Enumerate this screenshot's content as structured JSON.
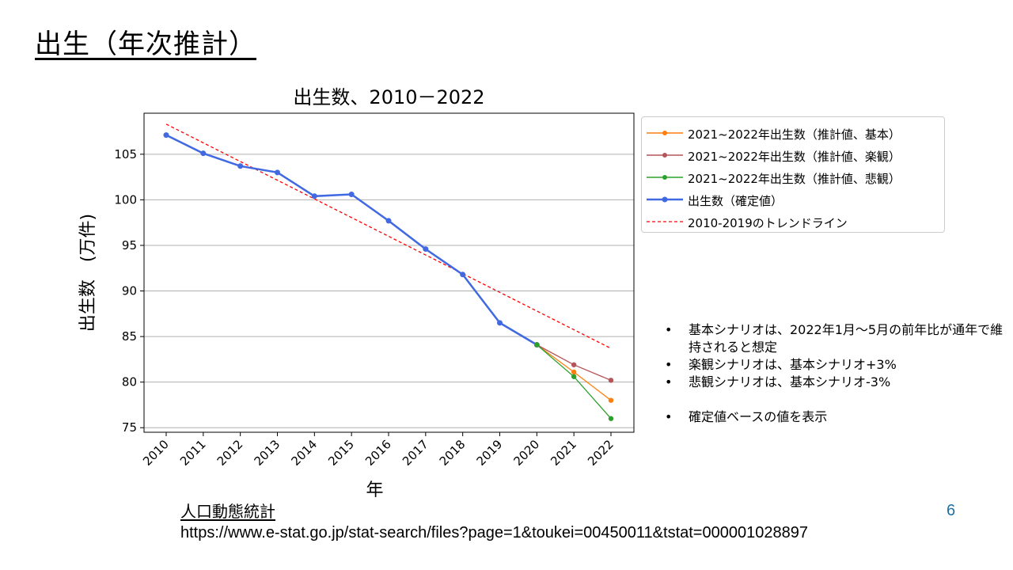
{
  "slide": {
    "title": "出生（年次推計）",
    "page_number": "6"
  },
  "notes": [
    "基本シナリオは、2022年1月～5月の前年比が通年で維持されると想定",
    "楽観シナリオは、基本シナリオ+3%",
    "悲観シナリオは、基本シナリオ-3%",
    "確定値ベースの値を表示"
  ],
  "source": {
    "title": "人口動態統計",
    "url": "https://www.e-stat.go.jp/stat-search/files?page=1&toukei=00450011&tstat=000001028897"
  },
  "chart_data": {
    "type": "line",
    "title": "出生数、2010－2022",
    "xlabel": "年",
    "ylabel": "出生数　(万件)",
    "x": [
      "2010",
      "2011",
      "2012",
      "2013",
      "2014",
      "2015",
      "2016",
      "2017",
      "2018",
      "2019",
      "2020",
      "2021",
      "2022"
    ],
    "ylim": [
      74.5,
      109.5
    ],
    "yticks": [
      75,
      80,
      85,
      90,
      95,
      100,
      105
    ],
    "grid": "y",
    "legend_position": "outside-right-top",
    "series": [
      {
        "name": "2021~2022年出生数（推計値、基本）",
        "color": "#ff7f0e",
        "style": "solid-marker",
        "x": [
          "2020",
          "2021",
          "2022"
        ],
        "values": [
          84.1,
          81.1,
          78.0
        ]
      },
      {
        "name": "2021~2022年出生数（推計値、楽観）",
        "color": "#b5555a",
        "style": "solid-marker",
        "x": [
          "2020",
          "2021",
          "2022"
        ],
        "values": [
          84.1,
          81.9,
          80.2
        ]
      },
      {
        "name": "2021~2022年出生数（推計値、悲観）",
        "color": "#2ca02c",
        "style": "solid-marker",
        "x": [
          "2020",
          "2021",
          "2022"
        ],
        "values": [
          84.1,
          80.6,
          76.0
        ]
      },
      {
        "name": "出生数（確定値）",
        "color": "#4169e1",
        "style": "solid-marker-thick",
        "x": [
          "2010",
          "2011",
          "2012",
          "2013",
          "2014",
          "2015",
          "2016",
          "2017",
          "2018",
          "2019",
          "2020"
        ],
        "values": [
          107.1,
          105.1,
          103.7,
          103.0,
          100.4,
          100.6,
          97.7,
          94.6,
          91.8,
          86.5,
          84.1
        ]
      },
      {
        "name": "2010-2019のトレンドライン",
        "color": "#ff0000",
        "style": "dashed",
        "x": [
          "2010",
          "2022"
        ],
        "values": [
          108.3,
          83.7
        ]
      }
    ]
  }
}
